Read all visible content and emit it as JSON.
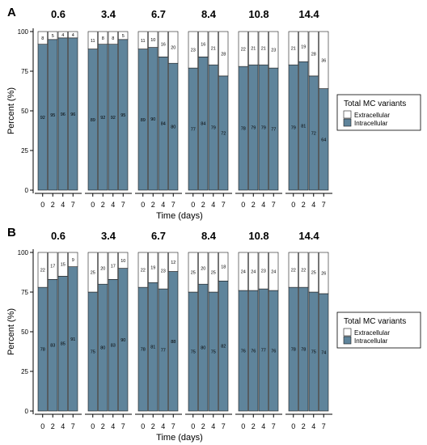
{
  "colors": {
    "extracellular": "#ffffff",
    "intracellular": "#5f849b",
    "stroke": "#1a1a1a"
  },
  "chart_data": [
    {
      "type": "bar",
      "panel_label": "A",
      "stacked": "percent",
      "ylabel": "Percent (%)",
      "xlabel": "Time (days)",
      "ylim": [
        0,
        100
      ],
      "yticks": [
        0,
        25,
        50,
        75,
        100
      ],
      "legend": {
        "title": "Total MC variants",
        "position": "right",
        "entries": [
          "Extracellular",
          "Intracellular"
        ]
      },
      "facets": [
        {
          "title": "0.6",
          "categories": [
            "0",
            "2",
            "4",
            "7"
          ],
          "series": [
            {
              "name": "Extracellular",
              "values": [
                8,
                5,
                4,
                4
              ]
            },
            {
              "name": "Intracellular",
              "values": [
                92,
                95,
                96,
                96
              ]
            }
          ]
        },
        {
          "title": "3.4",
          "categories": [
            "0",
            "2",
            "4",
            "7"
          ],
          "series": [
            {
              "name": "Extracellular",
              "values": [
                11,
                8,
                8,
                5
              ]
            },
            {
              "name": "Intracellular",
              "values": [
                89,
                92,
                92,
                95
              ]
            }
          ]
        },
        {
          "title": "6.7",
          "categories": [
            "0",
            "2",
            "4",
            "7"
          ],
          "series": [
            {
              "name": "Extracellular",
              "values": [
                11,
                10,
                16,
                20
              ]
            },
            {
              "name": "Intracellular",
              "values": [
                89,
                90,
                84,
                80
              ]
            }
          ]
        },
        {
          "title": "8.4",
          "categories": [
            "0",
            "2",
            "4",
            "7"
          ],
          "series": [
            {
              "name": "Extracellular",
              "values": [
                23,
                16,
                21,
                28
              ]
            },
            {
              "name": "Intracellular",
              "values": [
                77,
                84,
                79,
                72
              ]
            }
          ]
        },
        {
          "title": "10.8",
          "categories": [
            "0",
            "2",
            "4",
            "7"
          ],
          "series": [
            {
              "name": "Extracellular",
              "values": [
                22,
                21,
                21,
                23
              ]
            },
            {
              "name": "Intracellular",
              "values": [
                78,
                79,
                79,
                77
              ]
            }
          ]
        },
        {
          "title": "14.4",
          "categories": [
            "0",
            "2",
            "4",
            "7"
          ],
          "series": [
            {
              "name": "Extracellular",
              "values": [
                21,
                19,
                28,
                36
              ]
            },
            {
              "name": "Intracellular",
              "values": [
                79,
                81,
                72,
                64
              ]
            }
          ]
        }
      ]
    },
    {
      "type": "bar",
      "panel_label": "B",
      "stacked": "percent",
      "ylabel": "Percent (%)",
      "xlabel": "Time (days)",
      "ylim": [
        0,
        100
      ],
      "yticks": [
        0,
        25,
        50,
        75,
        100
      ],
      "legend": {
        "title": "Total MC variants",
        "position": "right",
        "entries": [
          "Extracellular",
          "Intracellular"
        ]
      },
      "facets": [
        {
          "title": "0.6",
          "categories": [
            "0",
            "2",
            "4",
            "7"
          ],
          "series": [
            {
              "name": "Extracellular",
              "values": [
                22,
                17,
                15,
                9
              ]
            },
            {
              "name": "Intracellular",
              "values": [
                78,
                83,
                85,
                91
              ]
            }
          ]
        },
        {
          "title": "3.4",
          "categories": [
            "0",
            "2",
            "4",
            "7"
          ],
          "series": [
            {
              "name": "Extracellular",
              "values": [
                25,
                20,
                17,
                10
              ]
            },
            {
              "name": "Intracellular",
              "values": [
                75,
                80,
                83,
                90
              ]
            }
          ]
        },
        {
          "title": "6.7",
          "categories": [
            "0",
            "2",
            "4",
            "7"
          ],
          "series": [
            {
              "name": "Extracellular",
              "values": [
                22,
                19,
                23,
                12
              ]
            },
            {
              "name": "Intracellular",
              "values": [
                78,
                81,
                77,
                88
              ]
            }
          ]
        },
        {
          "title": "8.4",
          "categories": [
            "0",
            "2",
            "4",
            "7"
          ],
          "series": [
            {
              "name": "Extracellular",
              "values": [
                25,
                20,
                25,
                18
              ]
            },
            {
              "name": "Intracellular",
              "values": [
                75,
                80,
                75,
                82
              ]
            }
          ]
        },
        {
          "title": "10.8",
          "categories": [
            "0",
            "2",
            "4",
            "7"
          ],
          "series": [
            {
              "name": "Extracellular",
              "values": [
                24,
                24,
                23,
                24
              ]
            },
            {
              "name": "Intracellular",
              "values": [
                76,
                76,
                77,
                76
              ]
            }
          ]
        },
        {
          "title": "14.4",
          "categories": [
            "0",
            "2",
            "4",
            "7"
          ],
          "series": [
            {
              "name": "Extracellular",
              "values": [
                22,
                22,
                25,
                26
              ]
            },
            {
              "name": "Intracellular",
              "values": [
                78,
                78,
                75,
                74
              ]
            }
          ]
        }
      ]
    }
  ]
}
